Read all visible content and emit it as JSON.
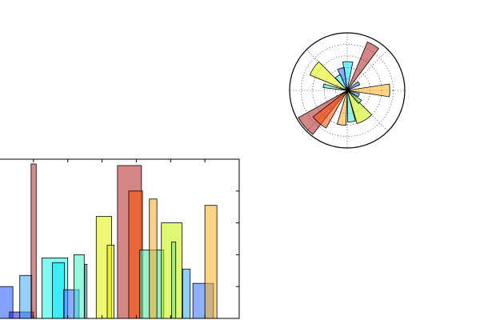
{
  "chart_data": [
    {
      "type": "bar",
      "title": "",
      "xlabel": "",
      "ylabel": "",
      "xlim": [
        0,
        7
      ],
      "ylim": [
        0,
        1
      ],
      "grid": false,
      "bars": [
        {
          "x": 0.0,
          "width": 0.4,
          "height": 0.2,
          "color": "#1e56ff"
        },
        {
          "x": 0.3,
          "width": 0.7,
          "height": 0.04,
          "color": "#1e1ecc"
        },
        {
          "x": 0.6,
          "width": 0.35,
          "height": 0.27,
          "color": "#3aa8ff"
        },
        {
          "x": 0.93,
          "width": 0.15,
          "height": 0.97,
          "color": "#b03030"
        },
        {
          "x": 1.25,
          "width": 0.75,
          "height": 0.38,
          "color": "#1cf2e8"
        },
        {
          "x": 1.55,
          "width": 0.35,
          "height": 0.35,
          "color": "#00e5ff"
        },
        {
          "x": 1.88,
          "width": 0.45,
          "height": 0.18,
          "color": "#2f6cff"
        },
        {
          "x": 2.18,
          "width": 0.3,
          "height": 0.4,
          "color": "#3ff0c8"
        },
        {
          "x": 2.5,
          "width": 0.06,
          "height": 0.34,
          "color": "#6fd0f0"
        },
        {
          "x": 2.83,
          "width": 0.45,
          "height": 0.64,
          "color": "#e4f000"
        },
        {
          "x": 3.15,
          "width": 0.2,
          "height": 0.46,
          "color": "#d8e800"
        },
        {
          "x": 3.45,
          "width": 0.7,
          "height": 0.96,
          "color": "#b02020"
        },
        {
          "x": 3.78,
          "width": 0.4,
          "height": 0.8,
          "color": "#ff4d00"
        },
        {
          "x": 4.1,
          "width": 0.7,
          "height": 0.43,
          "color": "#44e0a0"
        },
        {
          "x": 4.38,
          "width": 0.22,
          "height": 0.75,
          "color": "#ffaa20"
        },
        {
          "x": 4.73,
          "width": 0.6,
          "height": 0.6,
          "color": "#c7f000"
        },
        {
          "x": 5.03,
          "width": 0.12,
          "height": 0.48,
          "color": "#6cf060"
        },
        {
          "x": 5.35,
          "width": 0.22,
          "height": 0.31,
          "color": "#30a8ff"
        },
        {
          "x": 5.65,
          "width": 0.6,
          "height": 0.22,
          "color": "#3070ff"
        },
        {
          "x": 6.0,
          "width": 0.35,
          "height": 0.71,
          "color": "#ffb020"
        }
      ]
    },
    {
      "type": "polar-bar",
      "title": "",
      "rlim": [
        0,
        1
      ],
      "grid": true,
      "bars": [
        {
          "theta": 0.0,
          "width": 0.3,
          "radius": 0.74,
          "color": "#ffb020"
        },
        {
          "theta": 0.55,
          "width": 0.25,
          "radius": 0.24,
          "color": "#3070ff"
        },
        {
          "theta": 1.05,
          "width": 0.25,
          "radius": 0.91,
          "color": "#b02020"
        },
        {
          "theta": 1.55,
          "width": 0.35,
          "radius": 0.5,
          "color": "#00e5ff"
        },
        {
          "theta": 1.85,
          "width": 0.3,
          "radius": 0.4,
          "color": "#2f6cff"
        },
        {
          "theta": 2.15,
          "width": 0.35,
          "radius": 0.3,
          "color": "#1cf2e8"
        },
        {
          "theta": 2.55,
          "width": 0.4,
          "radius": 0.7,
          "color": "#e4f000"
        },
        {
          "theta": 2.95,
          "width": 0.15,
          "radius": 0.42,
          "color": "#44e0a0"
        },
        {
          "theta": 3.85,
          "width": 0.4,
          "radius": 0.97,
          "color": "#b02020"
        },
        {
          "theta": 4.0,
          "width": 0.4,
          "radius": 0.75,
          "color": "#ff4d00"
        },
        {
          "theta": 4.55,
          "width": 0.25,
          "radius": 0.61,
          "color": "#ffaa20"
        },
        {
          "theta": 4.85,
          "width": 0.25,
          "radius": 0.55,
          "color": "#3ff0c8"
        },
        {
          "theta": 5.25,
          "width": 0.5,
          "radius": 0.6,
          "color": "#c7f000"
        },
        {
          "theta": 5.55,
          "width": 0.25,
          "radius": 0.3,
          "color": "#6cf060"
        },
        {
          "theta": 5.9,
          "width": 0.25,
          "radius": 0.22,
          "color": "#3aa8ff"
        }
      ]
    }
  ]
}
